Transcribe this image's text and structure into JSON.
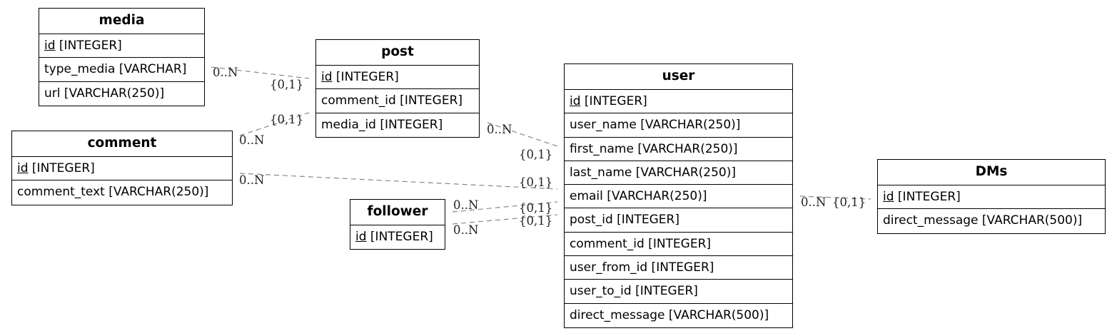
{
  "colors": {
    "border": "#000000",
    "edge": "#888888",
    "background": "#ffffff"
  },
  "entities": {
    "media": {
      "title": "media",
      "attrs": [
        {
          "pk": "id",
          "rest": " [INTEGER]"
        },
        {
          "pk": "",
          "rest": "type_media [VARCHAR]"
        },
        {
          "pk": "",
          "rest": "url [VARCHAR(250)]"
        }
      ]
    },
    "post": {
      "title": "post",
      "attrs": [
        {
          "pk": "id",
          "rest": " [INTEGER]"
        },
        {
          "pk": "",
          "rest": "comment_id [INTEGER]"
        },
        {
          "pk": "",
          "rest": "media_id [INTEGER]"
        }
      ]
    },
    "comment": {
      "title": "comment",
      "attrs": [
        {
          "pk": "id",
          "rest": " [INTEGER]"
        },
        {
          "pk": "",
          "rest": "comment_text [VARCHAR(250)]"
        }
      ]
    },
    "follower": {
      "title": "follower",
      "attrs": [
        {
          "pk": "id",
          "rest": " [INTEGER]"
        }
      ]
    },
    "user": {
      "title": "user",
      "attrs": [
        {
          "pk": "id",
          "rest": " [INTEGER]"
        },
        {
          "pk": "",
          "rest": "user_name [VARCHAR(250)]"
        },
        {
          "pk": "",
          "rest": "first_name [VARCHAR(250)]"
        },
        {
          "pk": "",
          "rest": "last_name [VARCHAR(250)]"
        },
        {
          "pk": "",
          "rest": "email [VARCHAR(250)]"
        },
        {
          "pk": "",
          "rest": "post_id [INTEGER]"
        },
        {
          "pk": "",
          "rest": "comment_id [INTEGER]"
        },
        {
          "pk": "",
          "rest": "user_from_id [INTEGER]"
        },
        {
          "pk": "",
          "rest": "user_to_id [INTEGER]"
        },
        {
          "pk": "",
          "rest": "direct_message [VARCHAR(500)]"
        }
      ]
    },
    "dms": {
      "title": "DMs",
      "attrs": [
        {
          "pk": "id",
          "rest": " [INTEGER]"
        },
        {
          "pk": "",
          "rest": "direct_message [VARCHAR(500)]"
        }
      ]
    }
  },
  "relationships": [
    {
      "from": "media",
      "to": "post",
      "from_card": "0..N",
      "to_card": "{0,1}"
    },
    {
      "from": "comment",
      "to": "post",
      "from_card": "0..N",
      "to_card": "{0,1}"
    },
    {
      "from": "post",
      "to": "user",
      "from_card": "0..N",
      "to_card": "{0,1}"
    },
    {
      "from": "comment",
      "to": "user",
      "from_card": "0..N",
      "to_card": "{0,1}"
    },
    {
      "from": "follower",
      "to": "user",
      "from_card": "0..N",
      "to_card": "{0,1}"
    },
    {
      "from": "follower",
      "to": "user",
      "from_card": "0..N",
      "to_card": "{0,1}"
    },
    {
      "from": "user",
      "to": "dms",
      "from_card": "0..N",
      "to_card": "{0,1}"
    }
  ]
}
